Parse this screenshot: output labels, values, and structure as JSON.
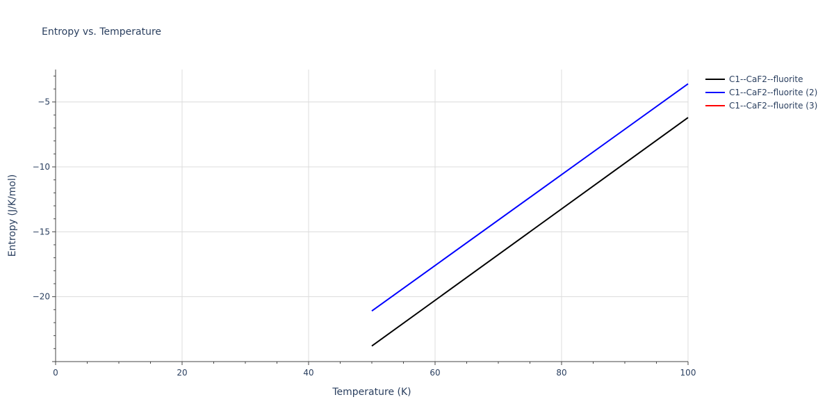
{
  "chart_data": {
    "type": "line",
    "title": "Entropy vs. Temperature",
    "xlabel": "Temperature (K)",
    "ylabel": "Entropy (J/K/mol)",
    "xlim": [
      0,
      100
    ],
    "ylim": [
      -25,
      -2.5
    ],
    "x_ticks": [
      0,
      20,
      40,
      60,
      80,
      100
    ],
    "x_tick_labels": [
      "0",
      "20",
      "40",
      "60",
      "80",
      "100"
    ],
    "y_ticks": [
      -20,
      -15,
      -10,
      -5
    ],
    "y_tick_labels": [
      "−20",
      "−15",
      "−10",
      "−5"
    ],
    "grid": true,
    "legend_position": "top-right",
    "series": [
      {
        "name": "C1--CaF2--fluorite",
        "color": "#000000",
        "x": [
          50,
          100
        ],
        "y": [
          -23.8,
          -6.2
        ]
      },
      {
        "name": "C1--CaF2--fluorite (2)",
        "color": "#0000ff",
        "x": [
          50,
          100
        ],
        "y": [
          -21.1,
          -3.6
        ]
      },
      {
        "name": "C1--CaF2--fluorite (3)",
        "color": "#ff0000",
        "x": [],
        "y": []
      }
    ]
  }
}
